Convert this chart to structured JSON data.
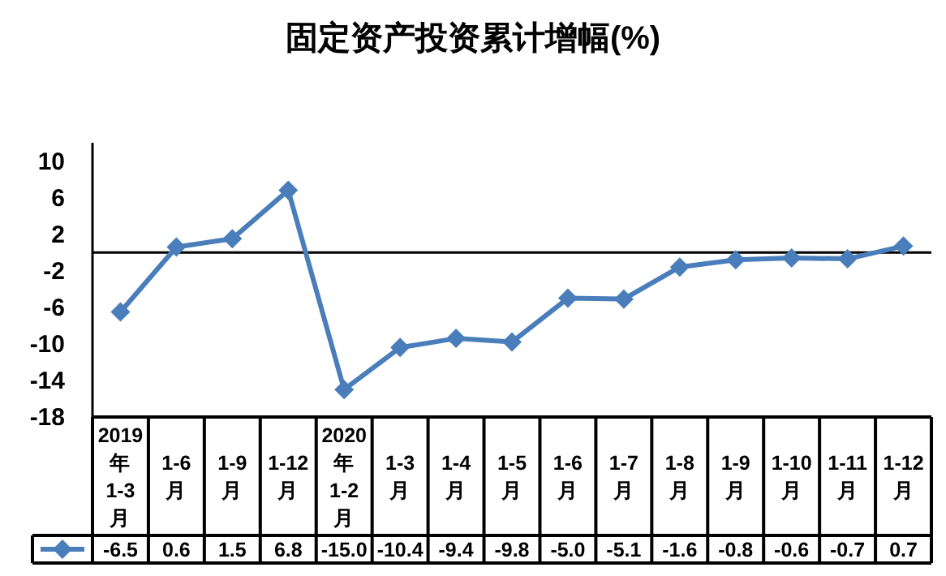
{
  "chart_data": {
    "type": "line",
    "title": "固定资产投资累计增幅(%)",
    "categories": [
      "2019年1-3月",
      "1-6月",
      "1-9月",
      "1-12月",
      "2020年1-2月",
      "1-3月",
      "1-4月",
      "1-5月",
      "1-6月",
      "1-7月",
      "1-8月",
      "1-9月",
      "1-10月",
      "1-11月",
      "1-12月"
    ],
    "series": [
      {
        "color": "#4a7ebb",
        "values": [
          -6.5,
          0.6,
          1.5,
          6.8,
          -15.0,
          -10.4,
          -9.4,
          -9.8,
          -5.0,
          -5.1,
          -1.6,
          -0.8,
          -0.6,
          -0.7,
          0.7
        ],
        "value_labels": [
          "-6.5",
          "0.6",
          "1.5",
          "6.8",
          "-15.0",
          "-10.4",
          "-9.4",
          "-9.8",
          "-5.0",
          "-5.1",
          "-1.6",
          "-0.8",
          "-0.6",
          "-0.7",
          "0.7"
        ]
      }
    ],
    "ylim": [
      -18,
      12
    ],
    "yticks": [
      10,
      6,
      2,
      -2,
      -6,
      -10,
      -14,
      -18
    ],
    "ref_lines": [
      {
        "axis": "y",
        "value": 0,
        "color": "#000000"
      }
    ],
    "marker": "diamond",
    "line_style": "solid",
    "grid": false
  }
}
